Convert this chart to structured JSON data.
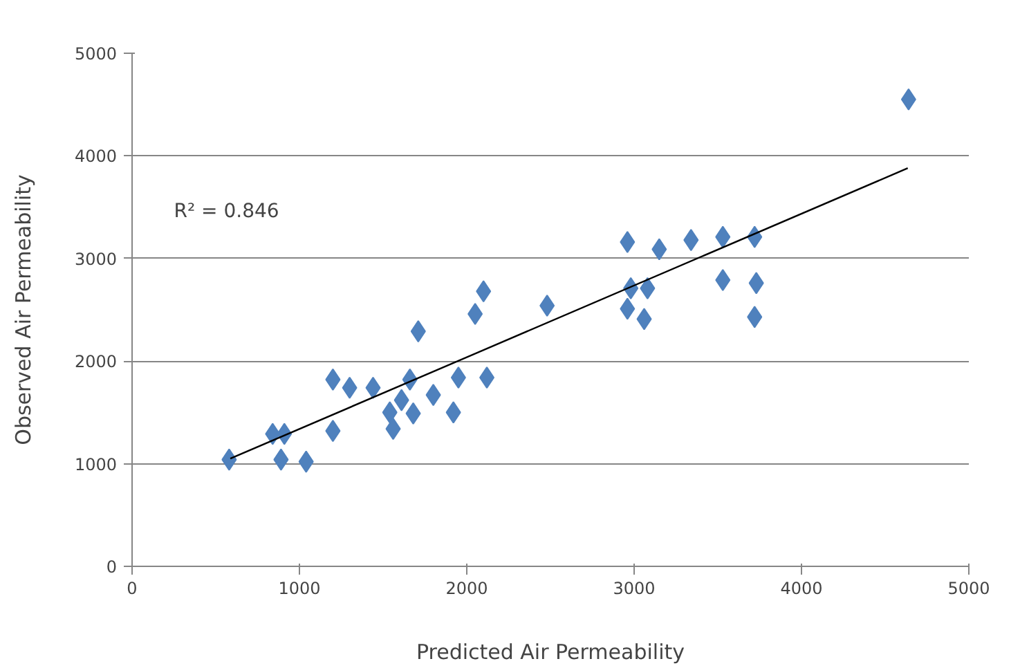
{
  "chart_data": {
    "type": "scatter",
    "xlabel": "Predicted Air Permeability",
    "ylabel": "Observed Air Permeability",
    "annotations": [
      "R² = 0.846"
    ],
    "xlim": [
      0,
      5000
    ],
    "xticks": [
      0,
      1000,
      2000,
      3000,
      4000,
      5000
    ],
    "ylim": [
      0,
      5000
    ],
    "yticks": [
      0,
      1000,
      2000,
      3000,
      4000,
      5000
    ],
    "grid": "y",
    "series": [
      {
        "color": "#4f81bd",
        "marker": "diamond",
        "x": [
          580,
          840,
          910,
          890,
          1040,
          1200,
          1200,
          1300,
          1440,
          1540,
          1560,
          1610,
          1660,
          1680,
          1710,
          1800,
          1920,
          1950,
          2050,
          2100,
          2120,
          2480,
          4640,
          2960,
          3150,
          3340,
          3530,
          3720,
          2980,
          3080,
          2960,
          3060,
          3530,
          3730,
          3720
        ],
        "values": [
          1040,
          1290,
          1290,
          1040,
          1020,
          1320,
          1820,
          1740,
          1740,
          1500,
          1340,
          1620,
          1820,
          1490,
          2290,
          1670,
          1500,
          1840,
          2460,
          2680,
          1840,
          2540,
          4550,
          3160,
          3090,
          3180,
          3210,
          3210,
          2710,
          2710,
          2510,
          2410,
          2790,
          2760,
          2430
        ]
      },
      {
        "type": "line",
        "color": "#000000",
        "x": [
          587,
          4635
        ],
        "values": [
          1050,
          3880
        ]
      }
    ]
  }
}
